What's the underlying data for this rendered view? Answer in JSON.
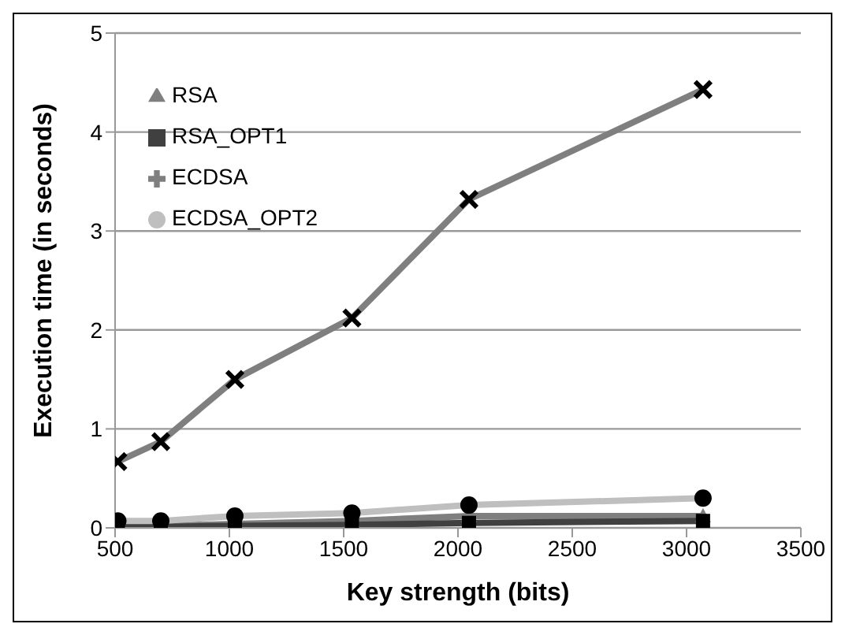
{
  "chart_data": {
    "type": "line",
    "xlabel": "Key strength (bits)",
    "ylabel": "Execution time (in seconds)",
    "x": [
      512,
      700,
      1024,
      1536,
      2048,
      3072
    ],
    "series": [
      {
        "name": "RSA",
        "color": "#7f7f7f",
        "marker": "triangle",
        "values": [
          0.02,
          0.02,
          0.04,
          0.07,
          0.12,
          0.12
        ]
      },
      {
        "name": "RSA_OPT1",
        "color": "#404040",
        "marker": "square",
        "values": [
          0.01,
          0.01,
          0.02,
          0.03,
          0.05,
          0.07
        ]
      },
      {
        "name": "ECDSA",
        "color": "#7f7f7f",
        "marker": "cross",
        "values": [
          0.67,
          0.87,
          1.5,
          2.12,
          3.32,
          4.43
        ]
      },
      {
        "name": "ECDSA_OPT2",
        "color": "#bfbfbf",
        "marker": "circle",
        "values": [
          0.07,
          0.07,
          0.12,
          0.15,
          0.23,
          0.3
        ]
      }
    ],
    "xlim": [
      500,
      3500
    ],
    "xticks": [
      500,
      1000,
      1500,
      2000,
      2500,
      3000,
      3500
    ],
    "ylim": [
      0,
      5
    ],
    "yticks": [
      0,
      1,
      2,
      3,
      4,
      5
    ],
    "grid": "y",
    "legend": "top left",
    "line_style": "solid"
  }
}
